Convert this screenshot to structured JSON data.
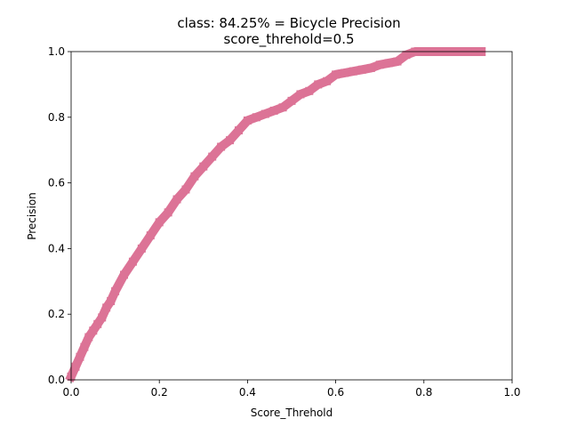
{
  "chart_data": {
    "type": "line",
    "title": "class: 84.25% = Bicycle Precision",
    "subtitle": "score_threhold=0.5",
    "xlabel": "Score_Threhold",
    "ylabel": "Precision",
    "xlim": [
      0.0,
      1.0
    ],
    "ylim": [
      0.0,
      1.0
    ],
    "xticks": [
      "0.0",
      "0.2",
      "0.4",
      "0.6",
      "0.8",
      "1.0"
    ],
    "yticks": [
      "0.0",
      "0.2",
      "0.4",
      "0.6",
      "0.8",
      "1.0"
    ],
    "grid": false,
    "series": [
      {
        "color": "#dc7396",
        "marker": "square",
        "x": [
          0.0,
          0.01,
          0.02,
          0.03,
          0.04,
          0.05,
          0.06,
          0.07,
          0.08,
          0.09,
          0.1,
          0.12,
          0.14,
          0.16,
          0.18,
          0.2,
          0.22,
          0.24,
          0.26,
          0.28,
          0.3,
          0.32,
          0.34,
          0.36,
          0.38,
          0.4,
          0.42,
          0.44,
          0.46,
          0.48,
          0.5,
          0.52,
          0.54,
          0.56,
          0.58,
          0.6,
          0.62,
          0.64,
          0.66,
          0.68,
          0.7,
          0.72,
          0.74,
          0.76,
          0.78,
          0.8,
          0.85,
          0.9,
          0.93
        ],
        "y": [
          0.01,
          0.04,
          0.07,
          0.1,
          0.13,
          0.15,
          0.17,
          0.19,
          0.22,
          0.24,
          0.27,
          0.32,
          0.36,
          0.4,
          0.44,
          0.48,
          0.51,
          0.55,
          0.58,
          0.62,
          0.65,
          0.68,
          0.71,
          0.73,
          0.76,
          0.79,
          0.8,
          0.81,
          0.82,
          0.83,
          0.85,
          0.87,
          0.88,
          0.9,
          0.91,
          0.93,
          0.935,
          0.94,
          0.945,
          0.95,
          0.96,
          0.965,
          0.97,
          0.99,
          1.0,
          1.0,
          1.0,
          1.0,
          1.0
        ]
      }
    ]
  }
}
